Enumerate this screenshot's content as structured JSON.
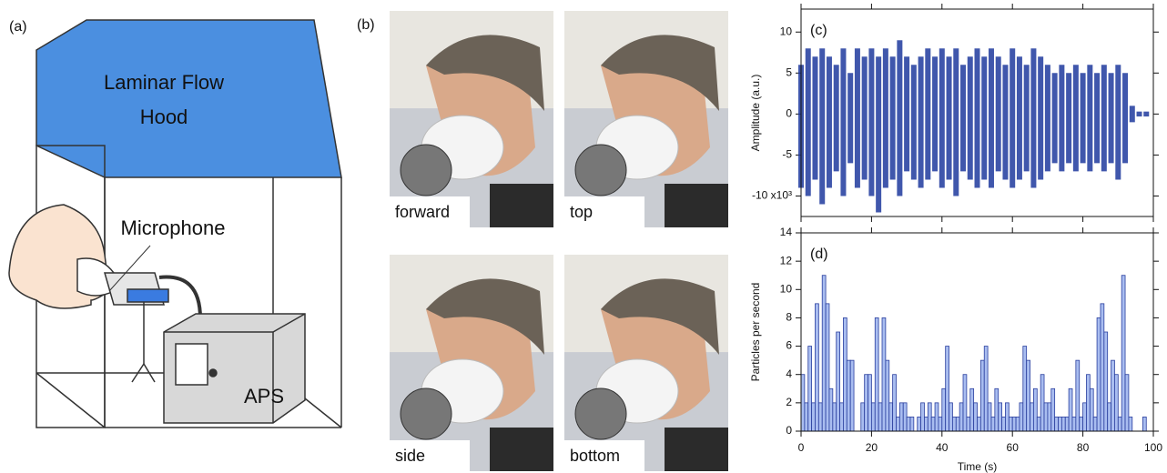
{
  "diagram": {
    "label": "(a)",
    "hood": [
      "Laminar Flow",
      "Hood"
    ],
    "microphone": "Microphone",
    "instrument": "APS"
  },
  "photos": {
    "label": "(b)",
    "captions": [
      "forward",
      "top",
      "side",
      "bottom"
    ]
  },
  "chart_data": [
    {
      "type": "waveform",
      "panel_label": "(c)",
      "ylabel": "Amplitude (a.u.)",
      "color": "#1f3a9e",
      "x": [
        0,
        2,
        4,
        6,
        8,
        10,
        12,
        14,
        16,
        18,
        20,
        22,
        24,
        26,
        28,
        30,
        32,
        34,
        36,
        38,
        40,
        42,
        44,
        46,
        48,
        50,
        52,
        54,
        56,
        58,
        60,
        62,
        64,
        66,
        68,
        70,
        72,
        74,
        76,
        78,
        80,
        82,
        84,
        86,
        88,
        90,
        92,
        94,
        96,
        98
      ],
      "series": [
        {
          "values": [
            6,
            8,
            7,
            8,
            7,
            6,
            8,
            5,
            8,
            7,
            8,
            7,
            8,
            7,
            9,
            7,
            6,
            7,
            8,
            7,
            8,
            7,
            8,
            6,
            7,
            8,
            7,
            8,
            7,
            6,
            8,
            7,
            6,
            8,
            7,
            6,
            5,
            6,
            5,
            6,
            5,
            6,
            5,
            6,
            5,
            6,
            5,
            1,
            0.3,
            0.3
          ]
        },
        {
          "values": [
            -9,
            -10,
            -8,
            -11,
            -9,
            -7,
            -10,
            -6,
            -9,
            -8,
            -10,
            -12,
            -9,
            -8,
            -10,
            -7,
            -8,
            -9,
            -8,
            -7,
            -9,
            -8,
            -10,
            -7,
            -8,
            -9,
            -8,
            -9,
            -7,
            -8,
            -9,
            -8,
            -7,
            -9,
            -8,
            -7,
            -6,
            -7,
            -6,
            -7,
            -6,
            -7,
            -6,
            -7,
            -6,
            -8,
            -6,
            -1,
            -0.3,
            -0.3
          ]
        }
      ],
      "xlim": [
        0,
        100
      ],
      "xticks": [
        0,
        20,
        40,
        60,
        80,
        100
      ],
      "ylim": [
        -12.5,
        12.8
      ],
      "yticks": [
        10,
        5,
        0,
        -5,
        {
          "value": -10,
          "label": "-10 x10³"
        }
      ]
    },
    {
      "type": "histogram",
      "panel_label": "(d)",
      "xlabel": "Time (s)",
      "ylabel": "Particles per second",
      "color": "#a9bdf0",
      "edge_color": "#2a3f9e",
      "bins": [
        0,
        1,
        2,
        3,
        4,
        5,
        6,
        7,
        8,
        9,
        10,
        11,
        12,
        13,
        14,
        15,
        16,
        17,
        18,
        19,
        20,
        21,
        22,
        23,
        24,
        25,
        26,
        27,
        28,
        29,
        30,
        31,
        32,
        33,
        34,
        35,
        36,
        37,
        38,
        39,
        40,
        41,
        42,
        43,
        44,
        45,
        46,
        47,
        48,
        49,
        50,
        51,
        52,
        53,
        54,
        55,
        56,
        57,
        58,
        59,
        60,
        61,
        62,
        63,
        64,
        65,
        66,
        67,
        68,
        69,
        70,
        71,
        72,
        73,
        74,
        75,
        76,
        77,
        78,
        79,
        80,
        81,
        82,
        83,
        84,
        85,
        86,
        87,
        88,
        89,
        90,
        91,
        92,
        93,
        94,
        95,
        96,
        97,
        98,
        99,
        100
      ],
      "values": [
        4,
        2,
        6,
        2,
        9,
        2,
        11,
        9,
        3,
        2,
        7,
        2,
        8,
        5,
        5,
        0,
        0,
        2,
        4,
        4,
        2,
        8,
        2,
        8,
        5,
        2,
        4,
        1,
        2,
        2,
        1,
        1,
        0,
        1,
        2,
        1,
        2,
        1,
        2,
        1,
        3,
        6,
        2,
        1,
        1,
        2,
        4,
        1,
        3,
        2,
        1,
        5,
        6,
        2,
        1,
        3,
        2,
        1,
        2,
        1,
        1,
        1,
        2,
        6,
        5,
        2,
        3,
        1,
        4,
        2,
        2,
        3,
        1,
        1,
        1,
        1,
        3,
        1,
        5,
        1,
        2,
        4,
        3,
        1,
        8,
        9,
        7,
        2,
        5,
        4,
        1,
        11,
        4,
        1,
        0,
        0,
        0,
        1,
        0,
        0
      ],
      "xlim": [
        0,
        100
      ],
      "xticks": [
        0,
        20,
        40,
        60,
        80,
        100
      ],
      "ylim": [
        0,
        14
      ],
      "yticks": [
        0,
        2,
        4,
        6,
        8,
        10,
        12,
        14
      ]
    }
  ]
}
